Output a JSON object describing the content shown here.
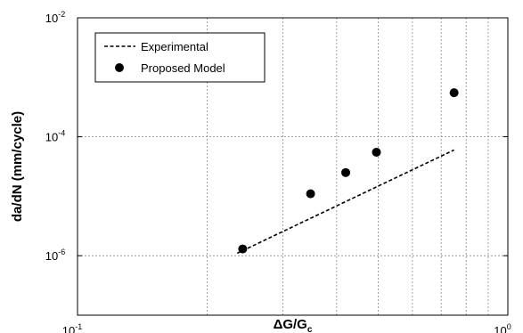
{
  "chart_data": {
    "type": "scatter",
    "xscale": "log",
    "yscale": "log",
    "xlim": [
      0.1,
      1
    ],
    "ylim": [
      1e-07,
      0.01
    ],
    "grid": true,
    "legend_position": "top-left",
    "x_ticks": [
      {
        "base": "10",
        "exp": "-1",
        "value": 0.1
      },
      {
        "base": "10",
        "exp": "0",
        "value": 1
      }
    ],
    "y_ticks": [
      {
        "base": "10",
        "exp": "-6",
        "value": 1e-06
      },
      {
        "base": "10",
        "exp": "-4",
        "value": 0.0001
      },
      {
        "base": "10",
        "exp": "-2",
        "value": 0.01
      }
    ],
    "xlabel": {
      "main": "ΔG/G",
      "sub": "c"
    },
    "ylabel": "da/dN (mm/cycle)",
    "series": [
      {
        "name": "Experimental",
        "style": "dashed-line",
        "color": "#000000",
        "x": [
          0.235,
          0.75
        ],
        "y": [
          1.1e-06,
          6e-05
        ]
      },
      {
        "name": "Proposed Model",
        "style": "marker",
        "color": "#000000",
        "x": [
          0.242,
          0.348,
          0.42,
          0.495,
          0.75
        ],
        "y": [
          1.3e-06,
          1.1e-05,
          2.5e-05,
          5.5e-05,
          0.00055
        ]
      }
    ]
  }
}
